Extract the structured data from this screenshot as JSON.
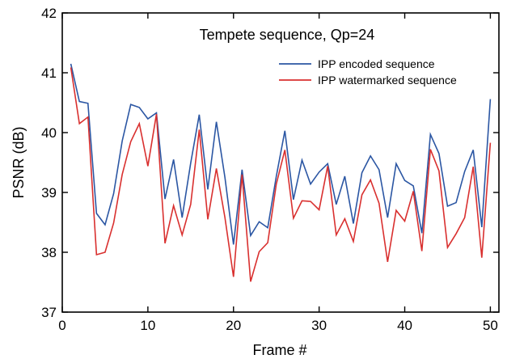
{
  "chart_data": {
    "type": "line",
    "title": "Tempete sequence, Qp=24",
    "xlabel": "Frame #",
    "ylabel": "PSNR (dB)",
    "xlim": [
      0,
      51
    ],
    "ylim": [
      37,
      42
    ],
    "xticks": [
      0,
      10,
      20,
      30,
      40,
      50
    ],
    "yticks": [
      37,
      38,
      39,
      40,
      41,
      42
    ],
    "legend_position": "top-right",
    "grid": false,
    "x": [
      1,
      2,
      3,
      4,
      5,
      6,
      7,
      8,
      9,
      10,
      11,
      12,
      13,
      14,
      15,
      16,
      17,
      18,
      19,
      20,
      21,
      22,
      23,
      24,
      25,
      26,
      27,
      28,
      29,
      30,
      31,
      32,
      33,
      34,
      35,
      36,
      37,
      38,
      39,
      40,
      41,
      42,
      43,
      44,
      45,
      46,
      47,
      48,
      49,
      50
    ],
    "series": [
      {
        "name": "IPP encoded sequence",
        "color": "#2b56a3",
        "values": [
          41.15,
          40.52,
          40.49,
          38.65,
          38.46,
          38.98,
          39.86,
          40.47,
          40.42,
          40.23,
          40.33,
          38.89,
          39.55,
          38.58,
          39.49,
          40.3,
          39.05,
          40.18,
          39.25,
          38.13,
          39.38,
          38.28,
          38.51,
          38.41,
          39.27,
          40.03,
          38.88,
          39.54,
          39.14,
          39.34,
          39.48,
          38.8,
          39.27,
          38.48,
          39.33,
          39.61,
          39.38,
          38.58,
          39.48,
          39.2,
          39.11,
          38.32,
          39.97,
          39.65,
          38.77,
          38.83,
          39.35,
          39.71,
          38.42,
          40.56
        ]
      },
      {
        "name": "IPP watermarked sequence",
        "color": "#d9302f",
        "values": [
          41.09,
          40.15,
          40.26,
          37.96,
          38.0,
          38.49,
          39.3,
          39.85,
          40.15,
          39.44,
          40.31,
          38.15,
          38.78,
          38.29,
          38.8,
          40.05,
          38.55,
          39.4,
          38.58,
          37.59,
          39.3,
          37.51,
          38.01,
          38.16,
          39.14,
          39.71,
          38.57,
          38.86,
          38.85,
          38.71,
          39.44,
          38.29,
          38.56,
          38.18,
          38.96,
          39.21,
          38.82,
          37.84,
          38.7,
          38.52,
          39.02,
          38.02,
          39.72,
          39.36,
          38.08,
          38.31,
          38.58,
          39.43,
          37.91,
          39.83
        ]
      }
    ]
  }
}
